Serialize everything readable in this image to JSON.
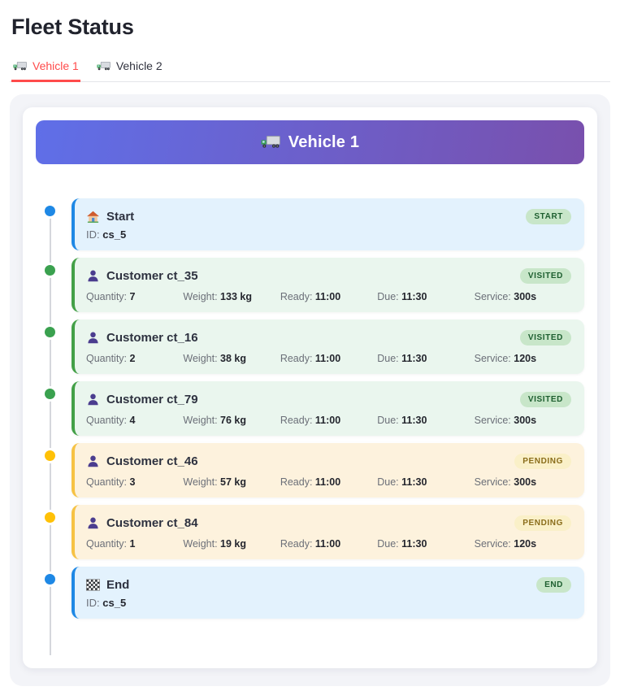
{
  "page_title": "Fleet Status",
  "tabs": [
    {
      "label": "Vehicle 1",
      "icon": "truck-icon",
      "active": true
    },
    {
      "label": "Vehicle 2",
      "icon": "truck-icon",
      "active": false
    }
  ],
  "vehicle_card": {
    "title": "Vehicle 1",
    "icon": "truck-icon",
    "gradient_start": "#5f6fe8",
    "gradient_end": "#7950ad"
  },
  "field_labels": {
    "id": "ID:",
    "quantity": "Quantity:",
    "weight": "Weight:",
    "ready": "Ready:",
    "due": "Due:",
    "service": "Service:"
  },
  "stops": [
    {
      "kind": "depot",
      "icon": "house-icon",
      "title": "Start",
      "badge": "START",
      "status": "start-end",
      "id_value": "cs_5"
    },
    {
      "kind": "customer",
      "icon": "person-icon",
      "title": "Customer ct_35",
      "badge": "VISITED",
      "status": "visited",
      "quantity": "7",
      "weight": "133 kg",
      "ready": "11:00",
      "due": "11:30",
      "service": "300s"
    },
    {
      "kind": "customer",
      "icon": "person-icon",
      "title": "Customer ct_16",
      "badge": "VISITED",
      "status": "visited",
      "quantity": "2",
      "weight": "38 kg",
      "ready": "11:00",
      "due": "11:30",
      "service": "120s"
    },
    {
      "kind": "customer",
      "icon": "person-icon",
      "title": "Customer ct_79",
      "badge": "VISITED",
      "status": "visited",
      "quantity": "4",
      "weight": "76 kg",
      "ready": "11:00",
      "due": "11:30",
      "service": "300s"
    },
    {
      "kind": "customer",
      "icon": "person-icon",
      "title": "Customer ct_46",
      "badge": "PENDING",
      "status": "pending",
      "quantity": "3",
      "weight": "57 kg",
      "ready": "11:00",
      "due": "11:30",
      "service": "300s"
    },
    {
      "kind": "customer",
      "icon": "person-icon",
      "title": "Customer ct_84",
      "badge": "PENDING",
      "status": "pending",
      "quantity": "1",
      "weight": "19 kg",
      "ready": "11:00",
      "due": "11:30",
      "service": "120s"
    },
    {
      "kind": "depot",
      "icon": "flag-icon",
      "title": "End",
      "badge": "END",
      "status": "start-end",
      "id_value": "cs_5"
    }
  ],
  "colors": {
    "accent_red": "#ff4b4b",
    "depot_blue": "#1e88e5",
    "visited_green": "#43a047",
    "pending_amber": "#ffc107",
    "badge_green_bg": "#c8e6c9",
    "badge_green_text": "#1d5e2f",
    "badge_yellow_bg": "#faf0c8",
    "badge_yellow_text": "#8a6d1a"
  }
}
